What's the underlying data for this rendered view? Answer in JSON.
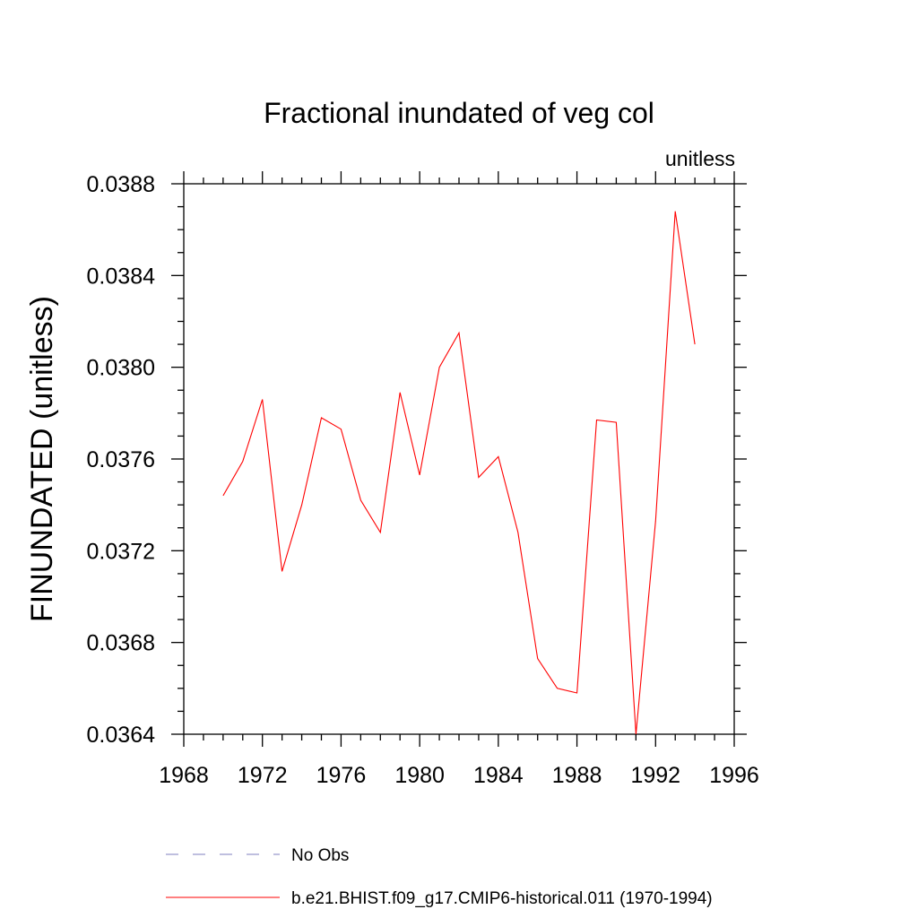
{
  "chart_data": {
    "type": "line",
    "title": "Fractional inundated of veg col",
    "units_label": "unitless",
    "ylabel": "FINUNDATED  (unitless)",
    "xlabel": "",
    "xlim": [
      1968,
      1996
    ],
    "ylim": [
      0.0364,
      0.0388
    ],
    "x_major_ticks": [
      1968,
      1972,
      1976,
      1980,
      1984,
      1988,
      1992,
      1996
    ],
    "x_tick_labels": [
      "1968",
      "1972",
      "1976",
      "1980",
      "1984",
      "1988",
      "1992",
      "1996"
    ],
    "x_minor_step": 1,
    "y_major_ticks": [
      0.0364,
      0.0368,
      0.0372,
      0.0376,
      0.038,
      0.0384,
      0.0388
    ],
    "y_tick_labels": [
      "0.0364",
      "0.0368",
      "0.0372",
      "0.0376",
      "0.0380",
      "0.0384",
      "0.0388"
    ],
    "y_minor_step": 0.0001,
    "grid": false,
    "series": [
      {
        "name": "b.e21.BHIST.f09_g17.CMIP6-historical.011 (1970-1994)",
        "color": "#ff0000",
        "style": "solid",
        "x": [
          1970,
          1971,
          1972,
          1973,
          1974,
          1975,
          1976,
          1977,
          1978,
          1979,
          1980,
          1981,
          1982,
          1983,
          1984,
          1985,
          1986,
          1987,
          1988,
          1989,
          1990,
          1991,
          1992,
          1993,
          1994
        ],
        "y": [
          0.03744,
          0.03759,
          0.03786,
          0.03711,
          0.0374,
          0.03778,
          0.03773,
          0.03742,
          0.03728,
          0.03789,
          0.03753,
          0.038,
          0.03815,
          0.03752,
          0.03761,
          0.03728,
          0.03673,
          0.0366,
          0.03658,
          0.03777,
          0.03776,
          0.0364,
          0.03733,
          0.03868,
          0.0381
        ]
      }
    ],
    "legend": {
      "placement": "bottom",
      "entries": [
        {
          "label": "No Obs",
          "color": "#7f7fbf",
          "style": "dashed"
        },
        {
          "label": "b.e21.BHIST.f09_g17.CMIP6-historical.011 (1970-1994)",
          "color": "#ff0000",
          "style": "solid"
        }
      ]
    }
  }
}
